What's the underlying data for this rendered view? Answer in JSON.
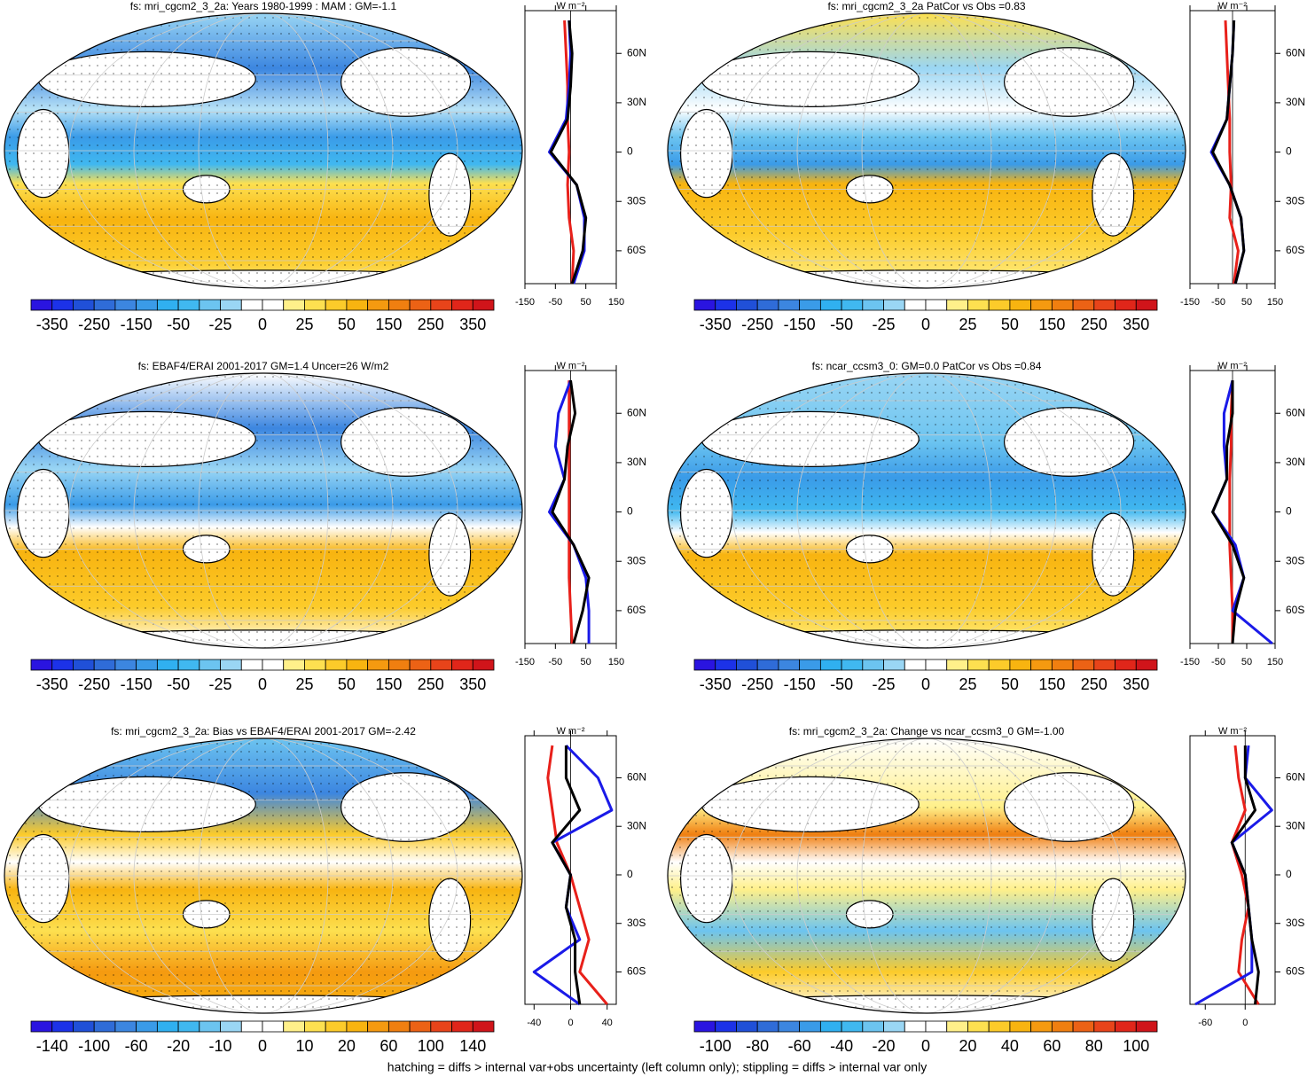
{
  "footer": "hatching = diffs > internal var+obs uncertainty (left column only); stippling = diffs > internal var only",
  "chart_data": [
    {
      "type": "map",
      "title": "fs: mri_cgcm2_3_2a: Years 1980-1999 : MAM : GM=-1.1",
      "colorbar_labels": [
        -350,
        -250,
        -150,
        -50,
        -25,
        0,
        25,
        50,
        150,
        250,
        350
      ],
      "colorbar_colors": [
        "#2a14e0",
        "#1c32e8",
        "#2050d8",
        "#2f6cd8",
        "#3c86e0",
        "#3a9be8",
        "#30b0f0",
        "#40b8f0",
        "#6cc4f0",
        "#9ad6f4",
        "#ffffff",
        "#ffffff",
        "#fff08a",
        "#fde050",
        "#fccb2a",
        "#f8b410",
        "#f59a10",
        "#f07f10",
        "#ec6215",
        "#e8441a",
        "#e0261a",
        "#d0141a"
      ]
    },
    {
      "type": "line",
      "xlabel": "W m⁻²",
      "xlim": [
        -150,
        150
      ],
      "xticks": [
        -150,
        -50,
        50,
        150
      ],
      "ylim": [
        -80,
        86
      ],
      "yticks": [
        {
          "value": 60,
          "label": "60N"
        },
        {
          "value": 30,
          "label": "30N"
        },
        0,
        {
          "value": -30,
          "label": "30S"
        },
        {
          "value": -60,
          "label": "60S"
        }
      ],
      "y": [
        80,
        60,
        40,
        20,
        0,
        -20,
        -40,
        -60,
        -80
      ],
      "series": [
        {
          "color": "#e8201a",
          "values": [
            -20,
            -15,
            -10,
            -10,
            -5,
            -10,
            -5,
            10,
            5
          ]
        },
        {
          "color": "#1a1ae8",
          "values": [
            -5,
            0,
            -5,
            -15,
            -70,
            20,
            45,
            45,
            10
          ]
        },
        {
          "color": "#000000",
          "values": [
            -5,
            5,
            0,
            -10,
            -65,
            20,
            50,
            40,
            5
          ]
        }
      ]
    },
    {
      "type": "map",
      "title": "fs: mri_cgcm2_3_2a PatCor vs Obs =0.83",
      "colorbar_labels": [
        -350,
        -250,
        -150,
        -50,
        -25,
        0,
        25,
        50,
        150,
        250,
        350
      ],
      "colorbar_colors": [
        "#2a14e0",
        "#1c32e8",
        "#2050d8",
        "#2f6cd8",
        "#3c86e0",
        "#3a9be8",
        "#30b0f0",
        "#40b8f0",
        "#6cc4f0",
        "#9ad6f4",
        "#ffffff",
        "#ffffff",
        "#fff08a",
        "#fde050",
        "#fccb2a",
        "#f8b410",
        "#f59a10",
        "#f07f10",
        "#ec6215",
        "#e8441a",
        "#e0261a",
        "#d0141a"
      ]
    },
    {
      "type": "line",
      "xlabel": "W m⁻²",
      "xlim": [
        -150,
        150
      ],
      "xticks": [
        -150,
        -50,
        50,
        150
      ],
      "ylim": [
        -80,
        86
      ],
      "yticks": [
        {
          "value": 60,
          "label": "60N"
        },
        {
          "value": 30,
          "label": "30N"
        },
        0,
        {
          "value": -30,
          "label": "30S"
        },
        {
          "value": -60,
          "label": "60S"
        }
      ],
      "y": [
        80,
        60,
        40,
        20,
        0,
        -20,
        -40,
        -60,
        -80
      ],
      "series": [
        {
          "color": "#e8201a",
          "values": [
            -25,
            -20,
            -15,
            -10,
            -10,
            -5,
            -10,
            20,
            5
          ]
        },
        {
          "color": "#1a1ae8",
          "values": [
            5,
            0,
            -10,
            -20,
            -75,
            -10,
            30,
            40,
            10
          ]
        },
        {
          "color": "#000000",
          "values": [
            5,
            0,
            -10,
            -20,
            -70,
            -10,
            30,
            40,
            10
          ]
        }
      ]
    },
    {
      "type": "map",
      "title": "fs: EBAF4/ERAI 2001-2017 GM=1.4 Uncer=26 W/m2",
      "colorbar_labels": [
        -350,
        -250,
        -150,
        -50,
        -25,
        0,
        25,
        50,
        150,
        250,
        350
      ],
      "colorbar_colors": [
        "#2a14e0",
        "#1c32e8",
        "#2050d8",
        "#2f6cd8",
        "#3c86e0",
        "#3a9be8",
        "#30b0f0",
        "#40b8f0",
        "#6cc4f0",
        "#9ad6f4",
        "#ffffff",
        "#ffffff",
        "#fff08a",
        "#fde050",
        "#fccb2a",
        "#f8b410",
        "#f59a10",
        "#f07f10",
        "#ec6215",
        "#e8441a",
        "#e0261a",
        "#d0141a"
      ]
    },
    {
      "type": "line",
      "xlabel": "W m⁻²",
      "xlim": [
        -150,
        150
      ],
      "xticks": [
        -150,
        -50,
        50,
        150
      ],
      "ylim": [
        -80,
        86
      ],
      "yticks": [
        {
          "value": 60,
          "label": "60N"
        },
        {
          "value": 30,
          "label": "30N"
        },
        0,
        {
          "value": -30,
          "label": "30S"
        },
        {
          "value": -60,
          "label": "60S"
        }
      ],
      "y": [
        80,
        60,
        40,
        20,
        0,
        -20,
        -40,
        -60,
        -80
      ],
      "series": [
        {
          "color": "#e8201a",
          "values": [
            -5,
            -5,
            -5,
            -5,
            -5,
            -5,
            -5,
            0,
            5
          ]
        },
        {
          "color": "#1a1ae8",
          "values": [
            0,
            -40,
            -50,
            -20,
            -70,
            10,
            50,
            60,
            60
          ]
        },
        {
          "color": "#000000",
          "values": [
            0,
            15,
            -10,
            -20,
            -60,
            10,
            60,
            40,
            10
          ]
        }
      ]
    },
    {
      "type": "map",
      "title": "fs: ncar_ccsm3_0: GM=0.0 PatCor vs Obs =0.84",
      "colorbar_labels": [
        -350,
        -250,
        -150,
        -50,
        -25,
        0,
        25,
        50,
        150,
        250,
        350
      ],
      "colorbar_colors": [
        "#2a14e0",
        "#1c32e8",
        "#2050d8",
        "#2f6cd8",
        "#3c86e0",
        "#3a9be8",
        "#30b0f0",
        "#40b8f0",
        "#6cc4f0",
        "#9ad6f4",
        "#ffffff",
        "#ffffff",
        "#fff08a",
        "#fde050",
        "#fccb2a",
        "#f8b410",
        "#f59a10",
        "#f07f10",
        "#ec6215",
        "#e8441a",
        "#e0261a",
        "#d0141a"
      ]
    },
    {
      "type": "line",
      "xlabel": "W m⁻²",
      "xlim": [
        -150,
        150
      ],
      "xticks": [
        -150,
        -50,
        50,
        150
      ],
      "ylim": [
        -80,
        86
      ],
      "yticks": [
        {
          "value": 60,
          "label": "60N"
        },
        {
          "value": 30,
          "label": "30N"
        },
        0,
        {
          "value": -30,
          "label": "30S"
        },
        {
          "value": -60,
          "label": "60S"
        }
      ],
      "y": [
        80,
        60,
        40,
        20,
        0,
        -20,
        -40,
        -60,
        -80
      ],
      "series": [
        {
          "color": "#e8201a",
          "values": [
            0,
            -5,
            -5,
            -10,
            -10,
            -10,
            -5,
            0,
            0
          ]
        },
        {
          "color": "#1a1ae8",
          "values": [
            0,
            -30,
            -30,
            -20,
            -70,
            10,
            40,
            0,
            140
          ]
        },
        {
          "color": "#000000",
          "values": [
            0,
            0,
            -20,
            -20,
            -70,
            0,
            40,
            10,
            0
          ]
        }
      ]
    },
    {
      "type": "map",
      "title": "fs: mri_cgcm2_3_2a: Bias vs EBAF4/ERAI 2001-2017 GM=-2.42",
      "colorbar_labels": [
        -140,
        -100,
        -60,
        -20,
        -10,
        0,
        10,
        20,
        60,
        100,
        140
      ],
      "colorbar_colors": [
        "#2a14e0",
        "#1c32e8",
        "#2050d8",
        "#2f6cd8",
        "#3c86e0",
        "#3a9be8",
        "#30b0f0",
        "#40b8f0",
        "#6cc4f0",
        "#9ad6f4",
        "#ffffff",
        "#ffffff",
        "#fff08a",
        "#fde050",
        "#fccb2a",
        "#f8b410",
        "#f59a10",
        "#f07f10",
        "#ec6215",
        "#e8441a",
        "#e0261a",
        "#d0141a"
      ]
    },
    {
      "type": "line",
      "xlabel": "W m⁻²",
      "xlim": [
        -50,
        50
      ],
      "xticks": [
        -40,
        0,
        40
      ],
      "ylim": [
        -80,
        86
      ],
      "yticks": [
        {
          "value": 60,
          "label": "60N"
        },
        {
          "value": 30,
          "label": "30N"
        },
        0,
        {
          "value": -30,
          "label": "30S"
        },
        {
          "value": -60,
          "label": "60S"
        }
      ],
      "y": [
        80,
        60,
        40,
        20,
        0,
        -20,
        -40,
        -60,
        -80
      ],
      "series": [
        {
          "color": "#e8201a",
          "values": [
            -20,
            -25,
            -20,
            -15,
            0,
            10,
            20,
            10,
            40
          ]
        },
        {
          "color": "#1a1ae8",
          "values": [
            -5,
            30,
            45,
            -20,
            0,
            -5,
            10,
            -40,
            10
          ]
        },
        {
          "color": "#000000",
          "values": [
            -5,
            -5,
            10,
            -20,
            0,
            -5,
            5,
            5,
            10
          ]
        }
      ]
    },
    {
      "type": "map",
      "title": "fs: mri_cgcm2_3_2a: Change vs ncar_ccsm3_0 GM=-1.00",
      "colorbar_labels": [
        -100,
        -80,
        -60,
        -40,
        -20,
        0,
        20,
        40,
        60,
        80,
        100
      ],
      "colorbar_colors": [
        "#2a14e0",
        "#1c32e8",
        "#2050d8",
        "#2f6cd8",
        "#3c86e0",
        "#3a9be8",
        "#30b0f0",
        "#40b8f0",
        "#6cc4f0",
        "#9ad6f4",
        "#ffffff",
        "#ffffff",
        "#fff08a",
        "#fde050",
        "#fccb2a",
        "#f8b410",
        "#f59a10",
        "#f07f10",
        "#ec6215",
        "#e8441a",
        "#e0261a",
        "#d0141a"
      ]
    },
    {
      "type": "line",
      "xlabel": "W m⁻²",
      "xlim": [
        -83,
        45
      ],
      "xticks": [
        -60,
        0
      ],
      "ylim": [
        -80,
        86
      ],
      "yticks": [
        {
          "value": 60,
          "label": "60N"
        },
        {
          "value": 30,
          "label": "30N"
        },
        0,
        {
          "value": -30,
          "label": "30S"
        },
        {
          "value": -60,
          "label": "60S"
        }
      ],
      "y": [
        80,
        60,
        40,
        20,
        0,
        -20,
        -40,
        -60,
        -80
      ],
      "series": [
        {
          "color": "#e8201a",
          "values": [
            -15,
            -10,
            0,
            -20,
            -5,
            5,
            -5,
            -10,
            20
          ]
        },
        {
          "color": "#1a1ae8",
          "values": [
            5,
            0,
            40,
            -20,
            0,
            5,
            10,
            10,
            -75
          ]
        },
        {
          "color": "#000000",
          "values": [
            0,
            0,
            15,
            -20,
            0,
            5,
            10,
            20,
            15
          ]
        }
      ]
    }
  ]
}
